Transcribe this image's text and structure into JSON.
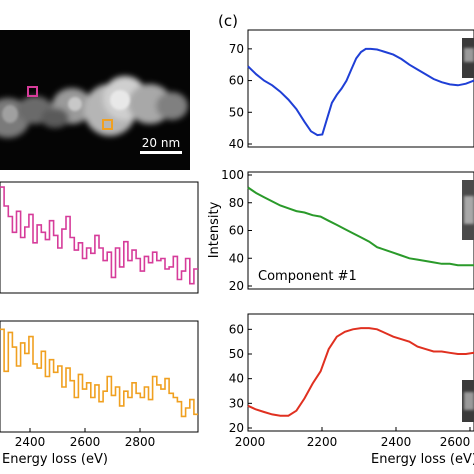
{
  "left_column": {
    "micrograph": {
      "scale_bar_label": "20 nm",
      "marker_colors": [
        "#d63c9a",
        "#f0a020"
      ]
    },
    "xlabel": "Energy loss (eV)",
    "x_ticks": [
      "2400",
      "2600",
      "2800"
    ]
  },
  "right_column": {
    "panel_letter": "(c)",
    "ylabel": "Intensity",
    "xlabel": "Energy loss (eV)",
    "x_ticks": [
      "2000",
      "2200",
      "2400",
      "2600"
    ],
    "component_label": "Component #1"
  },
  "chart_data": [
    {
      "type": "line",
      "panel": "left-middle",
      "color": "#d63c9a",
      "step": true,
      "xlim": [
        2270,
        2990
      ],
      "ylim": [
        0,
        1
      ],
      "x": [
        2270,
        2285,
        2300,
        2315,
        2330,
        2345,
        2360,
        2375,
        2390,
        2405,
        2420,
        2435,
        2450,
        2465,
        2480,
        2495,
        2510,
        2525,
        2540,
        2555,
        2570,
        2585,
        2600,
        2615,
        2630,
        2645,
        2660,
        2675,
        2690,
        2705,
        2720,
        2735,
        2750,
        2765,
        2780,
        2795,
        2810,
        2825,
        2840,
        2855,
        2870,
        2885,
        2900,
        2915,
        2930,
        2945,
        2960,
        2975
      ],
      "y": [
        0.98,
        0.8,
        0.7,
        0.55,
        0.75,
        0.5,
        0.6,
        0.72,
        0.45,
        0.62,
        0.55,
        0.48,
        0.66,
        0.52,
        0.4,
        0.58,
        0.7,
        0.5,
        0.38,
        0.45,
        0.3,
        0.4,
        0.35,
        0.52,
        0.4,
        0.28,
        0.36,
        0.12,
        0.4,
        0.22,
        0.46,
        0.28,
        0.38,
        0.3,
        0.18,
        0.32,
        0.26,
        0.36,
        0.28,
        0.3,
        0.2,
        0.22,
        0.32,
        0.1,
        0.18,
        0.3,
        0.06,
        0.2
      ]
    },
    {
      "type": "line",
      "panel": "left-bottom",
      "color": "#f0a020",
      "step": true,
      "xlim": [
        2270,
        2990
      ],
      "ylim": [
        0,
        1
      ],
      "x": [
        2270,
        2285,
        2300,
        2315,
        2330,
        2345,
        2360,
        2375,
        2390,
        2405,
        2420,
        2435,
        2450,
        2465,
        2480,
        2495,
        2510,
        2525,
        2540,
        2555,
        2570,
        2585,
        2600,
        2615,
        2630,
        2645,
        2660,
        2675,
        2690,
        2705,
        2720,
        2735,
        2750,
        2765,
        2780,
        2795,
        2810,
        2825,
        2840,
        2855,
        2870,
        2885,
        2900,
        2915,
        2930,
        2945,
        2960,
        2975
      ],
      "y": [
        0.95,
        0.55,
        0.92,
        0.78,
        0.6,
        0.82,
        0.72,
        0.88,
        0.62,
        0.58,
        0.74,
        0.5,
        0.66,
        0.54,
        0.6,
        0.4,
        0.58,
        0.46,
        0.3,
        0.52,
        0.38,
        0.44,
        0.3,
        0.42,
        0.26,
        0.36,
        0.5,
        0.32,
        0.4,
        0.22,
        0.36,
        0.3,
        0.44,
        0.34,
        0.3,
        0.4,
        0.28,
        0.5,
        0.42,
        0.38,
        0.48,
        0.34,
        0.3,
        0.26,
        0.12,
        0.2,
        0.28,
        0.14
      ]
    },
    {
      "type": "line",
      "panel": "right-top",
      "color": "#1f3fd6",
      "xlim": [
        2000,
        2700
      ],
      "ylim": [
        40,
        75
      ],
      "y_ticks": [
        40,
        50,
        60,
        70
      ],
      "x": [
        2000,
        2025,
        2050,
        2075,
        2100,
        2125,
        2150,
        2175,
        2195,
        2215,
        2230,
        2245,
        2260,
        2275,
        2290,
        2305,
        2320,
        2335,
        2350,
        2365,
        2380,
        2400,
        2425,
        2450,
        2475,
        2500,
        2525,
        2550,
        2575,
        2600,
        2625,
        2650,
        2675,
        2700
      ],
      "y": [
        64.5,
        62,
        60,
        58.5,
        56.5,
        54,
        51,
        47,
        44,
        42.8,
        43,
        48,
        53,
        55.5,
        57.5,
        60,
        63.5,
        67,
        69,
        70,
        70,
        69.8,
        69,
        68.2,
        66.8,
        65,
        63.5,
        62,
        60.5,
        59.5,
        58.8,
        58.5,
        59,
        60
      ]
    },
    {
      "type": "line",
      "panel": "right-middle",
      "color": "#2a9a2a",
      "xlim": [
        2000,
        2700
      ],
      "ylim": [
        20,
        100
      ],
      "y_ticks": [
        20,
        40,
        60,
        80,
        100
      ],
      "x": [
        2000,
        2025,
        2050,
        2075,
        2100,
        2125,
        2150,
        2175,
        2200,
        2225,
        2250,
        2275,
        2300,
        2325,
        2350,
        2375,
        2400,
        2425,
        2450,
        2475,
        2500,
        2525,
        2550,
        2575,
        2600,
        2625,
        2650,
        2675,
        2700
      ],
      "y": [
        91,
        87,
        84,
        81,
        78,
        76,
        74,
        73,
        71,
        70,
        67,
        64,
        61,
        58,
        55,
        52,
        48,
        46,
        44,
        42,
        40,
        39,
        38,
        37,
        36,
        36,
        35,
        35,
        35
      ]
    },
    {
      "type": "line",
      "panel": "right-bottom",
      "color": "#e03020",
      "xlim": [
        2000,
        2700
      ],
      "ylim": [
        20,
        65
      ],
      "y_ticks": [
        20,
        30,
        40,
        50,
        60
      ],
      "x": [
        2000,
        2025,
        2050,
        2075,
        2100,
        2125,
        2150,
        2175,
        2200,
        2225,
        2250,
        2275,
        2300,
        2325,
        2350,
        2375,
        2400,
        2425,
        2450,
        2475,
        2500,
        2525,
        2550,
        2575,
        2600,
        2625,
        2650,
        2675,
        2700
      ],
      "y": [
        29,
        27.5,
        26.5,
        25.5,
        25,
        25,
        27,
        32,
        38,
        43,
        52,
        57,
        59,
        60,
        60.5,
        60.5,
        60,
        58.5,
        57,
        56,
        55,
        53,
        52,
        51,
        51,
        50.5,
        50,
        50,
        50.5
      ]
    }
  ]
}
